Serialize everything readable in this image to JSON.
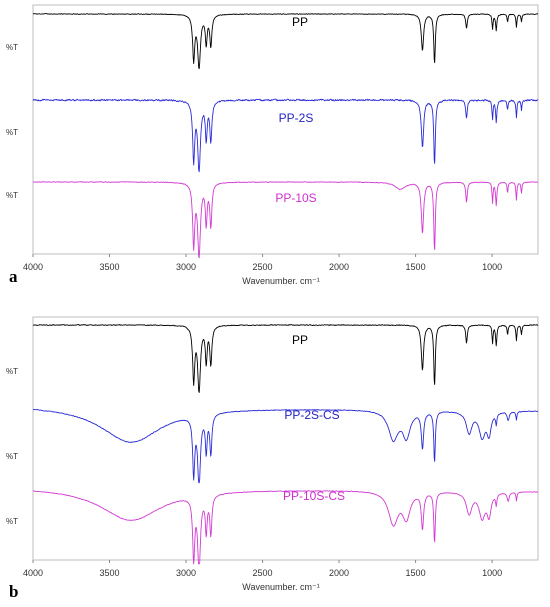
{
  "chart_data": [
    {
      "type": "line",
      "panel_label": "a",
      "xlabel": "Wavenumber. cm⁻¹",
      "ylabel": "%T",
      "xlim": [
        4000,
        700
      ],
      "x_reversed": true,
      "x_ticks": [
        4000,
        3500,
        3000,
        2500,
        2000,
        1500,
        1000
      ],
      "grid": false,
      "series": [
        {
          "name": "PP",
          "color": "#000000",
          "label_color": "#000000",
          "noise": 0.45,
          "baseline_tilt": 0,
          "features": [
            {
              "type": "band",
              "center": 2950,
              "width": 8,
              "depth": 0.85
            },
            {
              "type": "band",
              "center": 2915,
              "width": 11,
              "depth": 1.0
            },
            {
              "type": "band",
              "center": 2868,
              "width": 7,
              "depth": 0.55
            },
            {
              "type": "band",
              "center": 2838,
              "width": 8,
              "depth": 0.6
            },
            {
              "type": "band",
              "center": 1455,
              "width": 9,
              "depth": 0.7
            },
            {
              "type": "band",
              "center": 1376,
              "width": 6,
              "depth": 0.95
            },
            {
              "type": "band",
              "center": 1167,
              "width": 6,
              "depth": 0.28
            },
            {
              "type": "band",
              "center": 997,
              "width": 4,
              "depth": 0.28
            },
            {
              "type": "band",
              "center": 973,
              "width": 5,
              "depth": 0.32
            },
            {
              "type": "band",
              "center": 899,
              "width": 4,
              "depth": 0.15
            },
            {
              "type": "band",
              "center": 841,
              "width": 4,
              "depth": 0.25
            },
            {
              "type": "band",
              "center": 808,
              "width": 4,
              "depth": 0.15
            }
          ]
        },
        {
          "name": "PP-2S",
          "color": "#2b2bd6",
          "label_color": "#2323c8",
          "noise": 1.1,
          "baseline_tilt": 0,
          "features": [
            {
              "type": "band",
              "center": 2950,
              "width": 8,
              "depth": 0.85
            },
            {
              "type": "band",
              "center": 2915,
              "width": 11,
              "depth": 1.0
            },
            {
              "type": "band",
              "center": 2868,
              "width": 7,
              "depth": 0.55
            },
            {
              "type": "band",
              "center": 2838,
              "width": 8,
              "depth": 0.6
            },
            {
              "type": "band",
              "center": 1455,
              "width": 9,
              "depth": 0.7
            },
            {
              "type": "band",
              "center": 1376,
              "width": 6,
              "depth": 0.95
            },
            {
              "type": "band",
              "center": 1167,
              "width": 6,
              "depth": 0.28
            },
            {
              "type": "band",
              "center": 997,
              "width": 4,
              "depth": 0.28
            },
            {
              "type": "band",
              "center": 973,
              "width": 5,
              "depth": 0.32
            },
            {
              "type": "band",
              "center": 899,
              "width": 4,
              "depth": 0.15
            },
            {
              "type": "band",
              "center": 841,
              "width": 4,
              "depth": 0.25
            },
            {
              "type": "band",
              "center": 808,
              "width": 4,
              "depth": 0.15
            }
          ]
        },
        {
          "name": "PP-10S",
          "color": "#d23ad2",
          "label_color": "#d02ed0",
          "noise": 0.45,
          "baseline_tilt": 0,
          "features": [
            {
              "type": "band",
              "center": 2950,
              "width": 8,
              "depth": 0.85
            },
            {
              "type": "band",
              "center": 2915,
              "width": 11,
              "depth": 1.0
            },
            {
              "type": "band",
              "center": 2868,
              "width": 7,
              "depth": 0.55
            },
            {
              "type": "band",
              "center": 2838,
              "width": 8,
              "depth": 0.6
            },
            {
              "type": "band",
              "center": 1600,
              "width": 40,
              "depth": 0.1
            },
            {
              "type": "band",
              "center": 1455,
              "width": 9,
              "depth": 0.7
            },
            {
              "type": "band",
              "center": 1376,
              "width": 6,
              "depth": 0.95
            },
            {
              "type": "band",
              "center": 1167,
              "width": 6,
              "depth": 0.28
            },
            {
              "type": "band",
              "center": 997,
              "width": 4,
              "depth": 0.28
            },
            {
              "type": "band",
              "center": 973,
              "width": 5,
              "depth": 0.32
            },
            {
              "type": "band",
              "center": 899,
              "width": 4,
              "depth": 0.15
            },
            {
              "type": "band",
              "center": 841,
              "width": 4,
              "depth": 0.25
            },
            {
              "type": "band",
              "center": 808,
              "width": 4,
              "depth": 0.15
            }
          ]
        }
      ]
    },
    {
      "type": "line",
      "panel_label": "b",
      "xlabel": "Wavenumber. cm⁻¹",
      "ylabel": "%T",
      "xlim": [
        4000,
        700
      ],
      "x_reversed": true,
      "x_ticks": [
        4000,
        3500,
        3000,
        2500,
        2000,
        1500,
        1000
      ],
      "grid": false,
      "series": [
        {
          "name": "PP",
          "color": "#000000",
          "label_color": "#000000",
          "noise": 0.55,
          "baseline_tilt": 0,
          "features": [
            {
              "type": "band",
              "center": 2950,
              "width": 8,
              "depth": 0.85
            },
            {
              "type": "band",
              "center": 2915,
              "width": 11,
              "depth": 1.0
            },
            {
              "type": "band",
              "center": 2868,
              "width": 7,
              "depth": 0.55
            },
            {
              "type": "band",
              "center": 2838,
              "width": 8,
              "depth": 0.6
            },
            {
              "type": "band",
              "center": 1455,
              "width": 9,
              "depth": 0.7
            },
            {
              "type": "band",
              "center": 1376,
              "width": 6,
              "depth": 0.95
            },
            {
              "type": "band",
              "center": 1167,
              "width": 6,
              "depth": 0.28
            },
            {
              "type": "band",
              "center": 997,
              "width": 4,
              "depth": 0.28
            },
            {
              "type": "band",
              "center": 973,
              "width": 5,
              "depth": 0.32
            },
            {
              "type": "band",
              "center": 899,
              "width": 4,
              "depth": 0.15
            },
            {
              "type": "band",
              "center": 841,
              "width": 4,
              "depth": 0.25
            },
            {
              "type": "band",
              "center": 808,
              "width": 4,
              "depth": 0.15
            }
          ]
        },
        {
          "name": "PP-2S-CS",
          "color": "#2b2bd6",
          "label_color": "#2323c8",
          "noise": 0.45,
          "baseline_tilt": 0.08,
          "features": [
            {
              "type": "band",
              "center": 3360,
              "width": 240,
              "depth": 0.5
            },
            {
              "type": "band",
              "center": 2950,
              "width": 8,
              "depth": 0.8
            },
            {
              "type": "band",
              "center": 2915,
              "width": 11,
              "depth": 0.95
            },
            {
              "type": "band",
              "center": 2868,
              "width": 7,
              "depth": 0.5
            },
            {
              "type": "band",
              "center": 2838,
              "width": 8,
              "depth": 0.55
            },
            {
              "type": "band",
              "center": 1645,
              "width": 38,
              "depth": 0.4
            },
            {
              "type": "band",
              "center": 1560,
              "width": 30,
              "depth": 0.35
            },
            {
              "type": "band",
              "center": 1455,
              "width": 9,
              "depth": 0.5
            },
            {
              "type": "band",
              "center": 1376,
              "width": 6,
              "depth": 0.7
            },
            {
              "type": "band",
              "center": 1150,
              "width": 22,
              "depth": 0.3
            },
            {
              "type": "band",
              "center": 1065,
              "width": 24,
              "depth": 0.35
            },
            {
              "type": "band",
              "center": 1020,
              "width": 16,
              "depth": 0.3
            },
            {
              "type": "band",
              "center": 973,
              "width": 5,
              "depth": 0.15
            },
            {
              "type": "band",
              "center": 895,
              "width": 8,
              "depth": 0.12
            },
            {
              "type": "band",
              "center": 841,
              "width": 4,
              "depth": 0.12
            }
          ]
        },
        {
          "name": "PP-10S-CS",
          "color": "#d23ad2",
          "label_color": "#d02ed0",
          "noise": 0.35,
          "baseline_tilt": 0.06,
          "features": [
            {
              "type": "band",
              "center": 3360,
              "width": 240,
              "depth": 0.45
            },
            {
              "type": "band",
              "center": 2950,
              "width": 8,
              "depth": 0.85
            },
            {
              "type": "band",
              "center": 2915,
              "width": 11,
              "depth": 1.0
            },
            {
              "type": "band",
              "center": 2868,
              "width": 7,
              "depth": 0.5
            },
            {
              "type": "band",
              "center": 2838,
              "width": 8,
              "depth": 0.55
            },
            {
              "type": "band",
              "center": 1645,
              "width": 38,
              "depth": 0.45
            },
            {
              "type": "band",
              "center": 1560,
              "width": 30,
              "depth": 0.35
            },
            {
              "type": "band",
              "center": 1455,
              "width": 9,
              "depth": 0.5
            },
            {
              "type": "band",
              "center": 1376,
              "width": 6,
              "depth": 0.7
            },
            {
              "type": "band",
              "center": 1150,
              "width": 22,
              "depth": 0.3
            },
            {
              "type": "band",
              "center": 1065,
              "width": 24,
              "depth": 0.35
            },
            {
              "type": "band",
              "center": 1020,
              "width": 16,
              "depth": 0.3
            },
            {
              "type": "band",
              "center": 973,
              "width": 5,
              "depth": 0.15
            },
            {
              "type": "band",
              "center": 895,
              "width": 8,
              "depth": 0.12
            },
            {
              "type": "band",
              "center": 841,
              "width": 4,
              "depth": 0.12
            }
          ]
        }
      ]
    }
  ]
}
